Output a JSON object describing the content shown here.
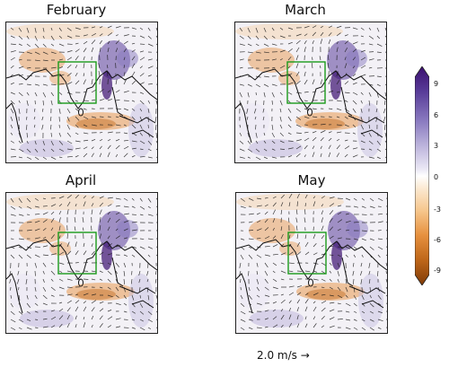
{
  "panels": [
    {
      "title": "February"
    },
    {
      "title": "March"
    },
    {
      "title": "April"
    },
    {
      "title": "May"
    }
  ],
  "colorbar": {
    "ticks": [
      "9",
      "6",
      "3",
      "0",
      "-3",
      "-6",
      "-9"
    ],
    "colors": [
      "#3b0f70",
      "#5a3e9a",
      "#8a7bc0",
      "#c4bde0",
      "#ebe8f5",
      "#ffffff",
      "#fbe8cf",
      "#f6c68c",
      "#e7913f",
      "#c0681a",
      "#7f3b08"
    ]
  },
  "scale_label": "2.0 m/s →"
}
